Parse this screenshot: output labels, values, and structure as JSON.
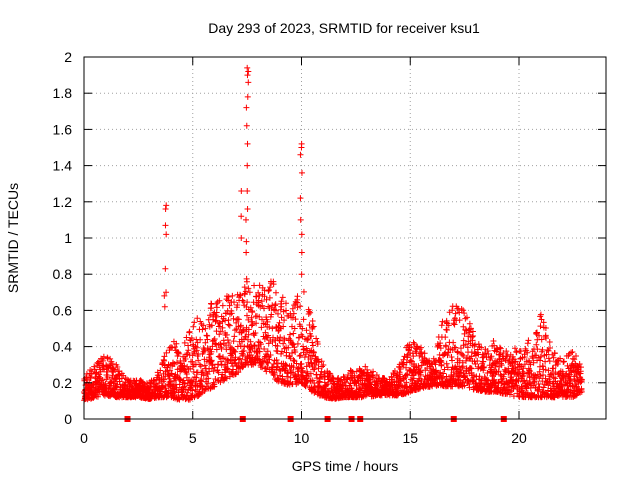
{
  "chart_data": {
    "type": "scatter",
    "title": "Day 293 of 2023, SRMTID for receiver ksu1",
    "xlabel": "GPS time / hours",
    "ylabel": "SRMTID / TECUs",
    "xlim": [
      0,
      24
    ],
    "ylim": [
      0,
      2
    ],
    "xticks": [
      0,
      5,
      10,
      15,
      20
    ],
    "xtick_labels": [
      "0",
      "5",
      "10",
      "15",
      "20"
    ],
    "yticks": [
      0,
      0.2,
      0.4,
      0.6,
      0.8,
      1,
      1.2,
      1.4,
      1.6,
      1.8,
      2
    ],
    "ytick_labels": [
      "0",
      "0.2",
      "0.4",
      "0.6",
      "0.8",
      "1",
      "1.2",
      "1.4",
      "1.6",
      "1.8",
      "2"
    ],
    "grid": true,
    "marker": "+",
    "color": "#ff0000",
    "baseline_markers_x": [
      2.0,
      7.3,
      9.5,
      11.2,
      12.3,
      12.7,
      17.0,
      19.3
    ],
    "envelope": {
      "x": [
        0,
        0.5,
        1.0,
        1.5,
        2.0,
        2.5,
        3.0,
        3.5,
        4.0,
        4.5,
        5.0,
        5.5,
        6.0,
        6.5,
        7.0,
        7.5,
        8.0,
        8.5,
        9.0,
        9.5,
        10.0,
        10.5,
        11.0,
        11.5,
        12.0,
        12.5,
        13.0,
        13.5,
        14.0,
        14.5,
        15.0,
        15.5,
        16.0,
        16.5,
        17.0,
        17.5,
        18.0,
        18.5,
        19.0,
        19.5,
        20.0,
        20.5,
        21.0,
        21.5,
        22.0,
        22.5,
        22.9
      ],
      "low": [
        0.1,
        0.12,
        0.13,
        0.12,
        0.12,
        0.12,
        0.11,
        0.12,
        0.12,
        0.1,
        0.11,
        0.14,
        0.18,
        0.22,
        0.25,
        0.3,
        0.3,
        0.25,
        0.2,
        0.18,
        0.2,
        0.15,
        0.12,
        0.11,
        0.12,
        0.12,
        0.12,
        0.13,
        0.13,
        0.13,
        0.15,
        0.17,
        0.18,
        0.18,
        0.18,
        0.18,
        0.16,
        0.15,
        0.15,
        0.13,
        0.12,
        0.12,
        0.12,
        0.12,
        0.12,
        0.12,
        0.15
      ],
      "high": [
        0.24,
        0.3,
        0.36,
        0.3,
        0.22,
        0.22,
        0.2,
        0.28,
        0.45,
        0.42,
        0.52,
        0.62,
        0.66,
        0.68,
        0.7,
        0.78,
        0.78,
        0.76,
        0.8,
        0.6,
        0.75,
        0.55,
        0.3,
        0.22,
        0.24,
        0.3,
        0.3,
        0.24,
        0.22,
        0.3,
        0.45,
        0.4,
        0.3,
        0.55,
        0.65,
        0.6,
        0.45,
        0.4,
        0.45,
        0.38,
        0.4,
        0.45,
        0.6,
        0.4,
        0.35,
        0.38,
        0.28
      ]
    },
    "spikes": [
      {
        "x": 3.75,
        "values": [
          1.18,
          1.16,
          1.07,
          1.02,
          0.83,
          0.7,
          0.68,
          0.62
        ]
      },
      {
        "x": 7.5,
        "values": [
          1.94,
          1.92,
          1.9,
          1.86,
          1.78,
          1.72,
          1.62,
          1.52,
          1.4,
          1.26,
          1.16,
          1.1,
          0.98,
          0.92
        ]
      },
      {
        "x": 10.0,
        "values": [
          1.52,
          1.5,
          1.46,
          1.36,
          1.22,
          1.1,
          1.02,
          0.92,
          0.8
        ]
      },
      {
        "x": 7.2,
        "values": [
          1.26,
          1.12,
          1.0
        ]
      }
    ]
  }
}
